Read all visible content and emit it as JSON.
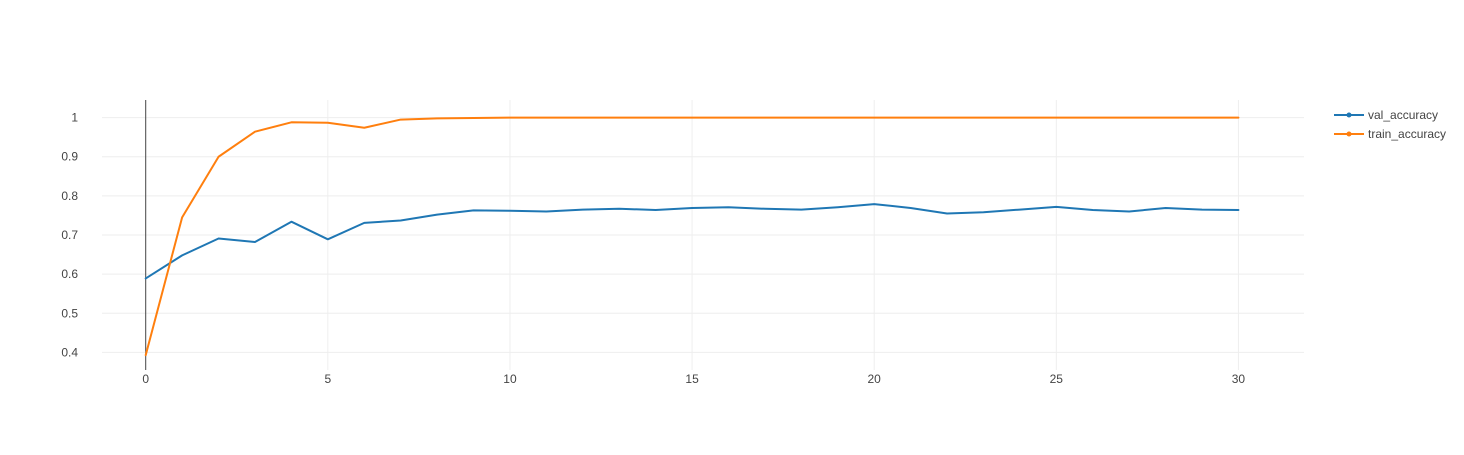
{
  "chart_data": {
    "type": "line",
    "title": "",
    "xlabel": "",
    "ylabel": "",
    "xlim": [
      -1.2,
      31.8
    ],
    "ylim": [
      0.355,
      1.045
    ],
    "x_ticks": [
      0,
      5,
      10,
      15,
      20,
      25,
      30
    ],
    "y_ticks": [
      0.4,
      0.5,
      0.6,
      0.7,
      0.8,
      0.9,
      1
    ],
    "x_tick_labels": [
      "0",
      "5",
      "10",
      "15",
      "20",
      "25",
      "30"
    ],
    "y_tick_labels": [
      "0.4",
      "0.5",
      "0.6",
      "0.7",
      "0.8",
      "0.9",
      "1"
    ],
    "grid": true,
    "legend_position": "top-right",
    "x": [
      0,
      1,
      2,
      3,
      4,
      5,
      6,
      7,
      8,
      9,
      10,
      11,
      12,
      13,
      14,
      15,
      16,
      17,
      18,
      19,
      20,
      21,
      22,
      23,
      24,
      25,
      26,
      27,
      28,
      29,
      30
    ],
    "series": [
      {
        "name": "val_accuracy",
        "color": "#1f77b4",
        "values": [
          0.589,
          0.648,
          0.691,
          0.682,
          0.734,
          0.689,
          0.731,
          0.737,
          0.752,
          0.763,
          0.762,
          0.76,
          0.765,
          0.767,
          0.764,
          0.769,
          0.771,
          0.767,
          0.765,
          0.771,
          0.779,
          0.769,
          0.755,
          0.758,
          0.765,
          0.772,
          0.764,
          0.76,
          0.769,
          0.765,
          0.764
        ]
      },
      {
        "name": "train_accuracy",
        "color": "#ff7f0e",
        "values": [
          0.393,
          0.745,
          0.9,
          0.964,
          0.988,
          0.987,
          0.974,
          0.995,
          0.998,
          0.999,
          1.0,
          1.0,
          1.0,
          1.0,
          1.0,
          1.0,
          1.0,
          1.0,
          1.0,
          1.0,
          1.0,
          1.0,
          1.0,
          1.0,
          1.0,
          1.0,
          1.0,
          1.0,
          1.0,
          1.0,
          1.0
        ]
      }
    ]
  }
}
